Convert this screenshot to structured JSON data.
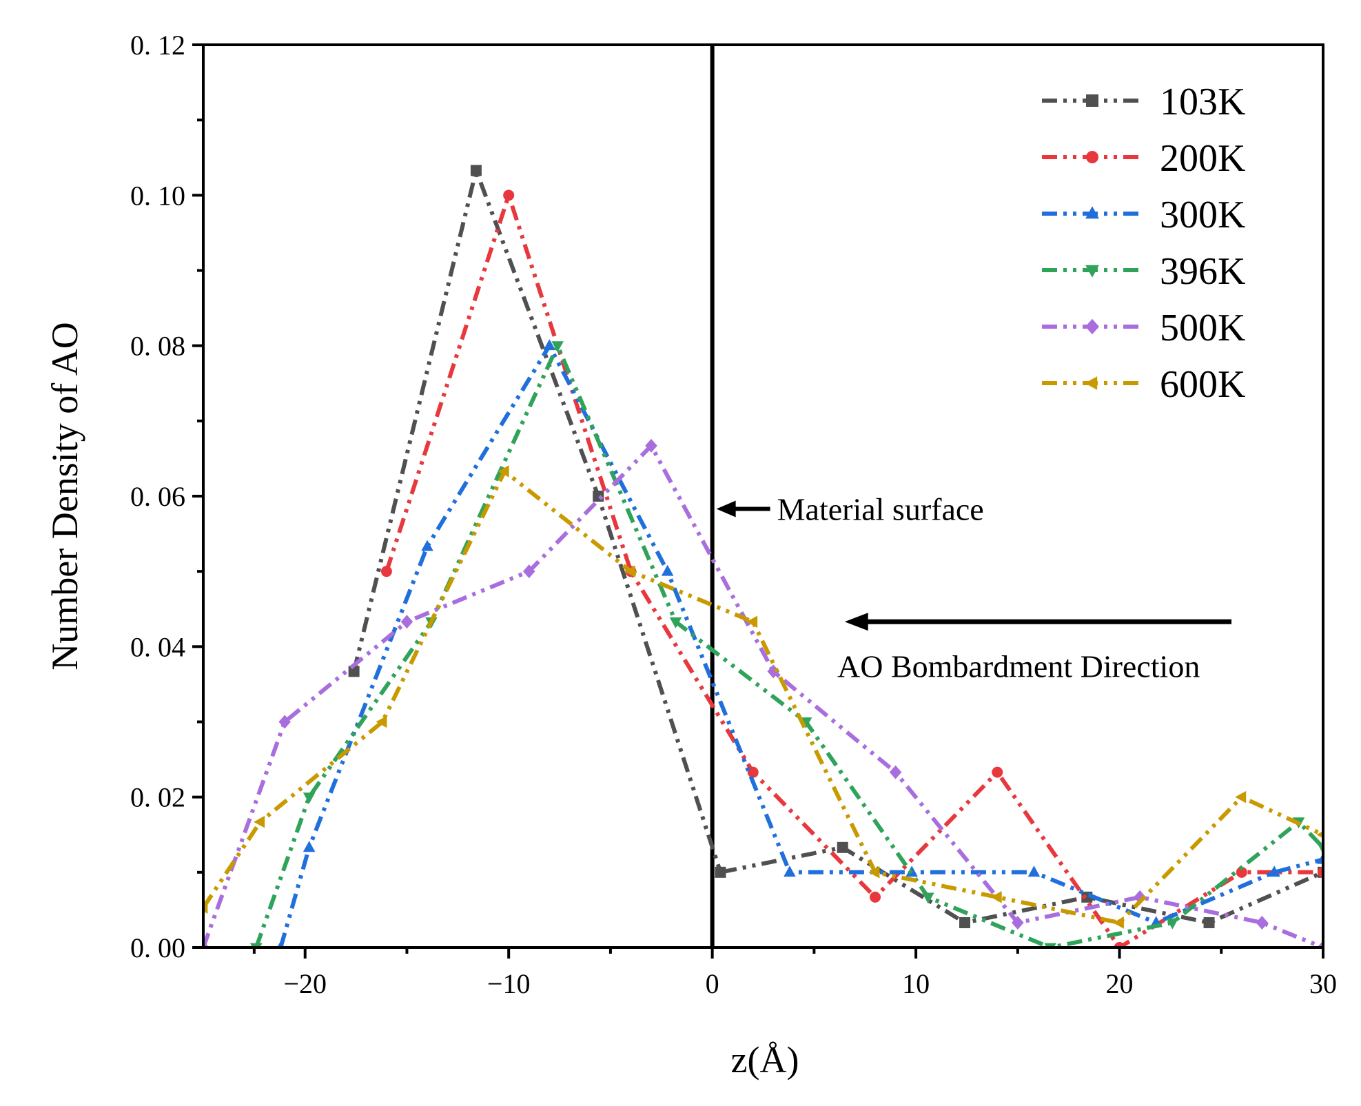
{
  "chart_data": {
    "type": "line",
    "title": "",
    "xlabel": "z(Å)",
    "ylabel": "Number Density of AO",
    "xlim": [
      -25,
      30
    ],
    "ylim": [
      0,
      0.12
    ],
    "x_ticks": [
      -20,
      -10,
      0,
      10,
      20,
      30
    ],
    "x_tick_labels": [
      "−20",
      "−10",
      "0",
      "10",
      "20",
      "30"
    ],
    "y_ticks": [
      0,
      0.02,
      0.04,
      0.06,
      0.08,
      0.1,
      0.12
    ],
    "y_tick_labels": [
      "0. 00",
      "0. 02",
      "0. 04",
      "0. 06",
      "0. 08",
      "0. 10",
      "0. 12"
    ],
    "grid": false,
    "legend_position": "top-right",
    "series": [
      {
        "name": "103K",
        "color": "#505050",
        "marker": "square",
        "x": [
          -17.6,
          -11.6,
          -5.6,
          0.4,
          6.4,
          12.4,
          18.4,
          24.4,
          30.0
        ],
        "y": [
          0.0367,
          0.1033,
          0.06,
          0.01,
          0.0133,
          0.0033,
          0.0067,
          0.0033,
          0.01
        ]
      },
      {
        "name": "200K",
        "color": "#e8383d",
        "marker": "circle",
        "x": [
          -16.0,
          -10.0,
          -4.0,
          2.0,
          8.0,
          14.0,
          20.0,
          26.0,
          30.0
        ],
        "y": [
          0.05,
          0.1,
          0.05,
          0.0233,
          0.0067,
          0.0233,
          0.0,
          0.01,
          0.01
        ]
      },
      {
        "name": "300K",
        "color": "#1f6fdc",
        "marker": "triangle-up",
        "x": [
          -21.2,
          -19.8,
          -14.0,
          -8.0,
          -2.2,
          3.8,
          9.8,
          15.8,
          21.8,
          27.6,
          30.0
        ],
        "y": [
          0.0,
          0.0133,
          0.0533,
          0.08,
          0.05,
          0.01,
          0.01,
          0.01,
          0.0033,
          0.01,
          0.0117
        ]
      },
      {
        "name": "396K",
        "color": "#30a35a",
        "marker": "triangle-down",
        "x": [
          -22.4,
          -19.8,
          -13.8,
          -7.6,
          -1.8,
          4.6,
          10.6,
          16.6,
          22.6,
          28.8,
          30.0
        ],
        "y": [
          0.0,
          0.02,
          0.0433,
          0.08,
          0.0433,
          0.03,
          0.0067,
          0.0,
          0.0033,
          0.0167,
          0.0133
        ]
      },
      {
        "name": "500K",
        "color": "#a96ede",
        "marker": "diamond",
        "x": [
          -25.0,
          -21.0,
          -15.0,
          -9.0,
          -3.0,
          3.0,
          9.0,
          15.0,
          21.0,
          27.0,
          30.0
        ],
        "y": [
          0.0,
          0.03,
          0.0433,
          0.05,
          0.0667,
          0.0367,
          0.0233,
          0.0033,
          0.0067,
          0.0033,
          0.0
        ]
      },
      {
        "name": "600K",
        "color": "#c99a00",
        "marker": "triangle-left",
        "x": [
          -25.0,
          -22.2,
          -16.2,
          -10.2,
          -4.0,
          2.0,
          8.0,
          14.0,
          20.0,
          26.0,
          30.0
        ],
        "y": [
          0.0053,
          0.0167,
          0.03,
          0.0633,
          0.05,
          0.0433,
          0.01,
          0.0067,
          0.0033,
          0.02,
          0.015
        ]
      }
    ],
    "vertical_line": {
      "x": 0
    },
    "annotations": [
      {
        "text": "Material surface",
        "arrow_to_x": 0,
        "arrow_to_y": 0.0583
      },
      {
        "text": "AO Bombardment Direction",
        "arrow": "leftward",
        "arrow_from_x": 25.5,
        "arrow_to_x": 6.5,
        "arrow_y": 0.0433
      }
    ]
  }
}
